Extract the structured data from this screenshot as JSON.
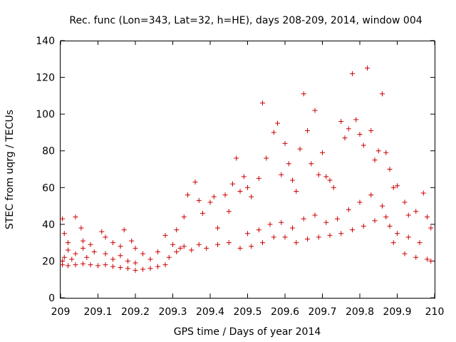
{
  "chart_data": {
    "type": "scatter",
    "title": "Rec. func (Lon=343, Lat=32, h=HE), days 208-209, 2014, window 004",
    "xlabel": "GPS time / Days of year 2014",
    "ylabel": "STEC from uqrg / TECUs",
    "xlim": [
      209,
      210
    ],
    "ylim": [
      0,
      140
    ],
    "xticks": [
      "209",
      "209.1",
      "209.2",
      "209.3",
      "209.4",
      "209.5",
      "209.6",
      "209.7",
      "209.8",
      "209.9",
      "210"
    ],
    "yticks": [
      "0",
      "20",
      "40",
      "60",
      "80",
      "100",
      "120",
      "140"
    ],
    "grid": false,
    "marker": "plus",
    "color": "#cc0000",
    "series": [
      {
        "name": "STEC",
        "points": [
          [
            209.005,
            43
          ],
          [
            209.01,
            35
          ],
          [
            209.02,
            30
          ],
          [
            209.04,
            44
          ],
          [
            209.055,
            38
          ],
          [
            209.06,
            31
          ],
          [
            209.08,
            29
          ],
          [
            209.005,
            20
          ],
          [
            209.01,
            22
          ],
          [
            209.02,
            26
          ],
          [
            209.03,
            21
          ],
          [
            209.04,
            24
          ],
          [
            209.06,
            27
          ],
          [
            209.07,
            22
          ],
          [
            209.09,
            25
          ],
          [
            209.005,
            18
          ],
          [
            209.02,
            17.5
          ],
          [
            209.04,
            18
          ],
          [
            209.06,
            18.5
          ],
          [
            209.08,
            18
          ],
          [
            209.1,
            17.5
          ],
          [
            209.12,
            18
          ],
          [
            209.14,
            17
          ],
          [
            209.11,
            36
          ],
          [
            209.12,
            33
          ],
          [
            209.14,
            30
          ],
          [
            209.16,
            28
          ],
          [
            209.17,
            37
          ],
          [
            209.19,
            31
          ],
          [
            209.2,
            27
          ],
          [
            209.12,
            24
          ],
          [
            209.14,
            21
          ],
          [
            209.16,
            23
          ],
          [
            209.18,
            20
          ],
          [
            209.2,
            19
          ],
          [
            209.22,
            24
          ],
          [
            209.24,
            21
          ],
          [
            209.26,
            25
          ],
          [
            209.16,
            16.5
          ],
          [
            209.18,
            16
          ],
          [
            209.2,
            15
          ],
          [
            209.22,
            15.5
          ],
          [
            209.24,
            16
          ],
          [
            209.26,
            17
          ],
          [
            209.28,
            18
          ],
          [
            209.28,
            34
          ],
          [
            209.3,
            29
          ],
          [
            209.31,
            37
          ],
          [
            209.32,
            27
          ],
          [
            209.33,
            44
          ],
          [
            209.34,
            56
          ],
          [
            209.36,
            63
          ],
          [
            209.37,
            53
          ],
          [
            209.29,
            22
          ],
          [
            209.31,
            25
          ],
          [
            209.33,
            28
          ],
          [
            209.35,
            26
          ],
          [
            209.37,
            29
          ],
          [
            209.39,
            27
          ],
          [
            209.38,
            46
          ],
          [
            209.4,
            52
          ],
          [
            209.41,
            55
          ],
          [
            209.42,
            38
          ],
          [
            209.44,
            56
          ],
          [
            209.45,
            47
          ],
          [
            209.46,
            62
          ],
          [
            209.47,
            76
          ],
          [
            209.48,
            58
          ],
          [
            209.49,
            66
          ],
          [
            209.5,
            60
          ],
          [
            209.51,
            55
          ],
          [
            209.53,
            65
          ],
          [
            209.54,
            106
          ],
          [
            209.55,
            76
          ],
          [
            209.57,
            90
          ],
          [
            209.58,
            95
          ],
          [
            209.59,
            67
          ],
          [
            209.6,
            84
          ],
          [
            209.61,
            73
          ],
          [
            209.62,
            64
          ],
          [
            209.63,
            58
          ],
          [
            209.64,
            81
          ],
          [
            209.65,
            111
          ],
          [
            209.66,
            91
          ],
          [
            209.67,
            73
          ],
          [
            209.68,
            102
          ],
          [
            209.69,
            67
          ],
          [
            209.7,
            79
          ],
          [
            209.71,
            66
          ],
          [
            209.72,
            64
          ],
          [
            209.73,
            60
          ],
          [
            209.75,
            96
          ],
          [
            209.76,
            87
          ],
          [
            209.77,
            92
          ],
          [
            209.78,
            122
          ],
          [
            209.79,
            97
          ],
          [
            209.8,
            89
          ],
          [
            209.81,
            83
          ],
          [
            209.82,
            125
          ],
          [
            209.83,
            91
          ],
          [
            209.84,
            75
          ],
          [
            209.85,
            80
          ],
          [
            209.86,
            111
          ],
          [
            209.87,
            79
          ],
          [
            209.88,
            70
          ],
          [
            209.89,
            60
          ],
          [
            209.9,
            61
          ],
          [
            209.92,
            52
          ],
          [
            209.93,
            45
          ],
          [
            209.95,
            47
          ],
          [
            209.97,
            57
          ],
          [
            209.98,
            44
          ],
          [
            209.99,
            38
          ],
          [
            209.42,
            29
          ],
          [
            209.45,
            30
          ],
          [
            209.48,
            27
          ],
          [
            209.51,
            28
          ],
          [
            209.54,
            30
          ],
          [
            209.57,
            33
          ],
          [
            209.6,
            33
          ],
          [
            209.63,
            30
          ],
          [
            209.66,
            32
          ],
          [
            209.69,
            33
          ],
          [
            209.72,
            34
          ],
          [
            209.75,
            35
          ],
          [
            209.78,
            37
          ],
          [
            209.81,
            39
          ],
          [
            209.84,
            42
          ],
          [
            209.87,
            44
          ],
          [
            209.89,
            30
          ],
          [
            209.92,
            24
          ],
          [
            209.95,
            22
          ],
          [
            209.98,
            21
          ],
          [
            209.99,
            20
          ],
          [
            209.5,
            35
          ],
          [
            209.53,
            37
          ],
          [
            209.56,
            40
          ],
          [
            209.59,
            41
          ],
          [
            209.62,
            38
          ],
          [
            209.65,
            43
          ],
          [
            209.68,
            45
          ],
          [
            209.71,
            41
          ],
          [
            209.74,
            43
          ],
          [
            209.77,
            48
          ],
          [
            209.8,
            52
          ],
          [
            209.83,
            56
          ],
          [
            209.86,
            50
          ],
          [
            209.88,
            39
          ],
          [
            209.9,
            35
          ],
          [
            209.93,
            33
          ],
          [
            209.96,
            30
          ]
        ]
      }
    ]
  }
}
